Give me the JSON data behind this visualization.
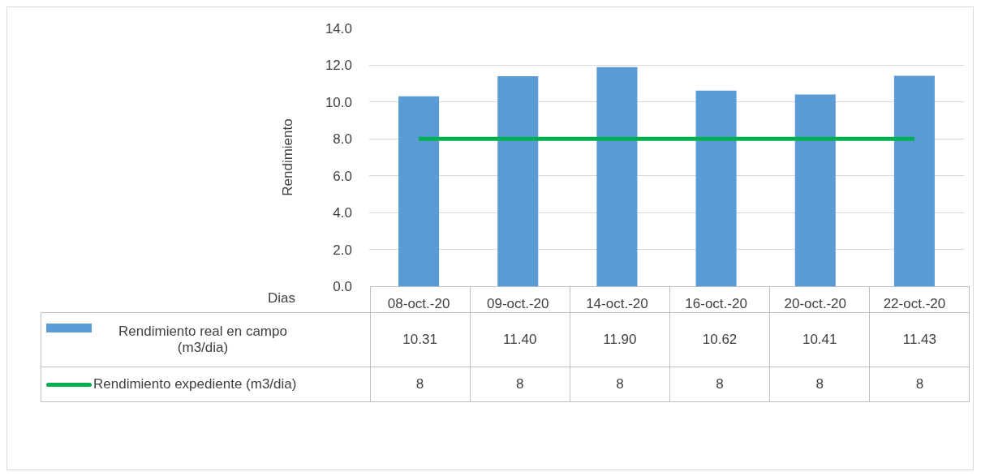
{
  "chart_data": {
    "type": "bar",
    "xlabel": "Dias",
    "ylabel": "Rendimiento",
    "categories": [
      "08-oct.-20",
      "09-oct.-20",
      "14-oct.-20",
      "16-oct.-20",
      "20-oct.-20",
      "22-oct.-20"
    ],
    "series": [
      {
        "name": "Rendimiento real en campo (m3/dia)",
        "color": "#5b9bd5",
        "values": [
          10.31,
          11.4,
          11.9,
          10.62,
          10.41,
          11.43
        ],
        "value_labels": [
          "10.31",
          "11.40",
          "11.90",
          "10.62",
          "10.41",
          "11.43"
        ]
      },
      {
        "name": "Rendimiento expediente (m3/dia)",
        "type": "line",
        "color": "#00b050",
        "values": [
          8,
          8,
          8,
          8,
          8,
          8
        ],
        "value_labels": [
          "8",
          "8",
          "8",
          "8",
          "8",
          "8"
        ]
      }
    ],
    "ylim": [
      0,
      14
    ],
    "yticks": [
      {
        "value": 0,
        "label": "0.0"
      },
      {
        "value": 2,
        "label": "2.0"
      },
      {
        "value": 4,
        "label": "4.0"
      },
      {
        "value": 6,
        "label": "6.0"
      },
      {
        "value": 8,
        "label": "8.0"
      },
      {
        "value": 10,
        "label": "10.0"
      },
      {
        "value": 12,
        "label": "12.0"
      },
      {
        "value": 14,
        "label": "14.0"
      }
    ],
    "grid": "y",
    "legend": "bottom",
    "marker": "none",
    "line_style": "solid"
  }
}
